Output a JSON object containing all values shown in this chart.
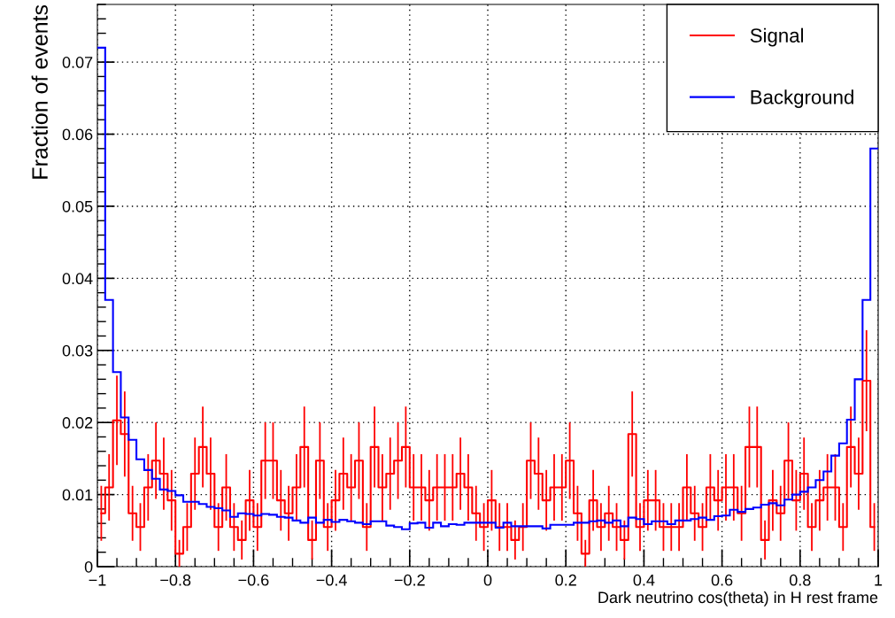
{
  "chart_data": {
    "type": "histogram",
    "xlabel": "Dark neutrino cos(theta) in H rest frame",
    "ylabel": "Fraction of events",
    "bins": [
      -1,
      -0.98,
      -0.96,
      -0.94,
      -0.92,
      -0.9,
      -0.88,
      -0.86,
      -0.84,
      -0.82,
      -0.8,
      -0.78,
      -0.76,
      -0.74,
      -0.72,
      -0.7,
      -0.68,
      -0.66,
      -0.64,
      -0.62,
      -0.6,
      -0.58,
      -0.56,
      -0.54,
      -0.52,
      -0.5,
      -0.48,
      -0.46,
      -0.44,
      -0.42,
      -0.4,
      -0.38,
      -0.36,
      -0.34,
      -0.32,
      -0.3,
      -0.28,
      -0.26,
      -0.24,
      -0.22,
      -0.2,
      -0.18,
      -0.16,
      -0.14,
      -0.12,
      -0.1,
      -0.08,
      -0.06,
      -0.04,
      -0.02,
      0,
      0.02,
      0.04,
      0.06,
      0.08,
      0.1,
      0.12,
      0.14,
      0.16,
      0.18,
      0.2,
      0.22,
      0.24,
      0.26,
      0.28,
      0.3,
      0.32,
      0.34,
      0.36,
      0.38,
      0.4,
      0.42,
      0.44,
      0.46,
      0.48,
      0.5,
      0.52,
      0.54,
      0.56,
      0.58,
      0.6,
      0.62,
      0.64,
      0.66,
      0.68,
      0.7,
      0.72,
      0.74,
      0.76,
      0.78,
      0.8,
      0.82,
      0.84,
      0.86,
      0.88,
      0.9,
      0.92,
      0.94,
      0.96,
      0.98,
      1
    ],
    "series": [
      {
        "name": "Signal",
        "color": "#ff0000",
        "type": "step",
        "x": [
          -0.99,
          -0.97,
          -0.95,
          -0.93,
          -0.91,
          -0.89,
          -0.87,
          -0.85,
          -0.83,
          -0.81,
          -0.79,
          -0.77,
          -0.75,
          -0.73,
          -0.71,
          -0.69,
          -0.67,
          -0.65,
          -0.63,
          -0.61,
          -0.59,
          -0.57,
          -0.55,
          -0.53,
          -0.51,
          -0.49,
          -0.47,
          -0.45,
          -0.43,
          -0.41,
          -0.39,
          -0.37,
          -0.35,
          -0.33,
          -0.31,
          -0.29,
          -0.27,
          -0.25,
          -0.23,
          -0.21,
          -0.19,
          -0.17,
          -0.15,
          -0.13,
          -0.11,
          -0.09,
          -0.07,
          -0.05,
          -0.03,
          -0.01,
          0.01,
          0.03,
          0.05,
          0.07,
          0.09,
          0.11,
          0.13,
          0.15,
          0.17,
          0.19,
          0.21,
          0.23,
          0.25,
          0.27,
          0.29,
          0.31,
          0.33,
          0.35,
          0.37,
          0.39,
          0.41,
          0.43,
          0.45,
          0.47,
          0.49,
          0.51,
          0.53,
          0.55,
          0.57,
          0.59,
          0.61,
          0.63,
          0.65,
          0.67,
          0.69,
          0.71,
          0.73,
          0.75,
          0.77,
          0.79,
          0.81,
          0.83,
          0.85,
          0.87,
          0.89,
          0.91,
          0.93,
          0.95,
          0.97,
          0.99
        ],
        "values": [
          0.0074,
          0.011,
          0.0203,
          0.0184,
          0.0074,
          0.0055,
          0.011,
          0.0147,
          0.0129,
          0.0092,
          0.0018,
          0.0055,
          0.0129,
          0.0166,
          0.0129,
          0.0055,
          0.011,
          0.0055,
          0.0037,
          0.0092,
          0.0055,
          0.0147,
          0.0147,
          0.0092,
          0.0074,
          0.011,
          0.0166,
          0.0037,
          0.0147,
          0.0055,
          0.0092,
          0.0129,
          0.011,
          0.0147,
          0.0055,
          0.0166,
          0.011,
          0.0129,
          0.0147,
          0.0166,
          0.011,
          0.011,
          0.0092,
          0.011,
          0.011,
          0.011,
          0.0129,
          0.011,
          0.0074,
          0.0055,
          0.0092,
          0.0055,
          0.0055,
          0.0037,
          0.0055,
          0.0147,
          0.0129,
          0.0092,
          0.011,
          0.011,
          0.0147,
          0.0074,
          0.0018,
          0.0092,
          0.0055,
          0.0074,
          0.0055,
          0.0037,
          0.0184,
          0.0055,
          0.0092,
          0.0092,
          0.0055,
          0.0055,
          0.0055,
          0.011,
          0.0074,
          0.0055,
          0.011,
          0.0092,
          0.011,
          0.011,
          0.0074,
          0.0166,
          0.0166,
          0.0037,
          0.0092,
          0.0074,
          0.0147,
          0.0092,
          0.0129,
          0.0055,
          0.0092,
          0.011,
          0.011,
          0.0055,
          0.0166,
          0.0129,
          0.0258,
          0.0055
        ],
        "errors": [
          0.0037,
          0.0045,
          0.0061,
          0.0058,
          0.0037,
          0.0032,
          0.0045,
          0.0052,
          0.0049,
          0.0041,
          0.0018,
          0.0032,
          0.0049,
          0.0055,
          0.0049,
          0.0032,
          0.0045,
          0.0032,
          0.0026,
          0.0041,
          0.0032,
          0.0052,
          0.0052,
          0.0041,
          0.0037,
          0.0045,
          0.0055,
          0.0026,
          0.0052,
          0.0032,
          0.0041,
          0.0049,
          0.0045,
          0.0052,
          0.0032,
          0.0055,
          0.0045,
          0.0049,
          0.0052,
          0.0055,
          0.0045,
          0.0045,
          0.0041,
          0.0045,
          0.0045,
          0.0045,
          0.0049,
          0.0045,
          0.0037,
          0.0032,
          0.0041,
          0.0032,
          0.0032,
          0.0026,
          0.0032,
          0.0052,
          0.0049,
          0.0041,
          0.0045,
          0.0045,
          0.0052,
          0.0037,
          0.0018,
          0.0041,
          0.0032,
          0.0037,
          0.0032,
          0.0026,
          0.0058,
          0.0032,
          0.0041,
          0.0041,
          0.0032,
          0.0032,
          0.0032,
          0.0045,
          0.0037,
          0.0032,
          0.0045,
          0.0041,
          0.0045,
          0.0045,
          0.0037,
          0.0055,
          0.0055,
          0.0026,
          0.0041,
          0.0037,
          0.0052,
          0.0041,
          0.0049,
          0.0032,
          0.0041,
          0.0045,
          0.0045,
          0.0032,
          0.0055,
          0.0049,
          0.0069,
          0.0032
        ]
      },
      {
        "name": "Background",
        "color": "#0000ff",
        "values": [
          0.072,
          0.037,
          0.027,
          0.0207,
          0.0176,
          0.0149,
          0.0134,
          0.0122,
          0.0107,
          0.0105,
          0.0099,
          0.009,
          0.009,
          0.0087,
          0.0083,
          0.0081,
          0.0078,
          0.0069,
          0.0074,
          0.0073,
          0.0071,
          0.0073,
          0.0072,
          0.0069,
          0.0068,
          0.0064,
          0.0061,
          0.0068,
          0.0061,
          0.0065,
          0.0062,
          0.0065,
          0.0063,
          0.0061,
          0.0059,
          0.0063,
          0.0063,
          0.0057,
          0.0055,
          0.0052,
          0.006,
          0.0061,
          0.0054,
          0.0061,
          0.0056,
          0.0059,
          0.0058,
          0.0061,
          0.0061,
          0.0061,
          0.0061,
          0.0054,
          0.0061,
          0.0056,
          0.0056,
          0.0056,
          0.0056,
          0.0053,
          0.0058,
          0.0058,
          0.0058,
          0.0061,
          0.0061,
          0.0063,
          0.0064,
          0.0061,
          0.0064,
          0.0056,
          0.0068,
          0.0066,
          0.0059,
          0.0063,
          0.0063,
          0.0059,
          0.0064,
          0.0064,
          0.0066,
          0.0068,
          0.0065,
          0.007,
          0.0071,
          0.0079,
          0.0076,
          0.008,
          0.0082,
          0.0086,
          0.0088,
          0.0085,
          0.0093,
          0.01,
          0.0104,
          0.011,
          0.012,
          0.0132,
          0.0154,
          0.0171,
          0.0204,
          0.026,
          0.037,
          0.058
        ]
      }
    ],
    "xlim": [
      -1,
      1
    ],
    "xticks": [
      {
        "value": -1,
        "label": "−1"
      },
      {
        "value": -0.8,
        "label": "−0.8"
      },
      {
        "value": -0.6,
        "label": "−0.6"
      },
      {
        "value": -0.4,
        "label": "−0.4"
      },
      {
        "value": -0.2,
        "label": "−0.2"
      },
      0,
      0.2,
      0.4,
      0.6,
      0.8,
      1
    ],
    "ylim": [
      0,
      0.078
    ],
    "yticks": [
      0,
      0.01,
      0.02,
      0.03,
      0.04,
      0.05,
      0.06,
      0.07
    ],
    "grid": true,
    "legend": "top right"
  }
}
